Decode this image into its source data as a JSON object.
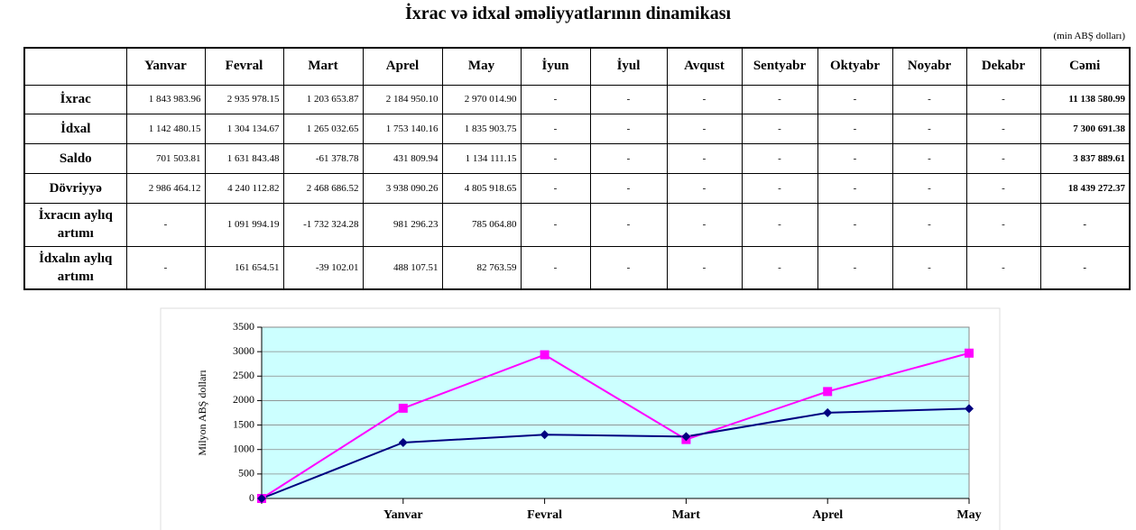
{
  "title": "İxrac və idxal əməliyyatlarının dinamikası",
  "unit_note": "(min ABŞ dolları)",
  "table": {
    "columns": [
      "Yanvar",
      "Fevral",
      "Mart",
      "Aprel",
      "May",
      "İyun",
      "İyul",
      "Avqust",
      "Sentyabr",
      "Oktyabr",
      "Noyabr",
      "Dekabr",
      "Cəmi"
    ],
    "rows": [
      {
        "label": "İxrac",
        "cells": [
          "1 843 983.96",
          "2 935 978.15",
          "1 203 653.87",
          "2 184 950.10",
          "2 970 014.90",
          "-",
          "-",
          "-",
          "-",
          "-",
          "-",
          "-",
          "11 138 580.99"
        ]
      },
      {
        "label": "İdxal",
        "cells": [
          "1 142 480.15",
          "1 304 134.67",
          "1 265 032.65",
          "1 753 140.16",
          "1 835 903.75",
          "-",
          "-",
          "-",
          "-",
          "-",
          "-",
          "-",
          "7 300 691.38"
        ]
      },
      {
        "label": "Saldo",
        "cells": [
          "701 503.81",
          "1 631 843.48",
          "-61 378.78",
          "431 809.94",
          "1 134 111.15",
          "-",
          "-",
          "-",
          "-",
          "-",
          "-",
          "-",
          "3 837 889.61"
        ]
      },
      {
        "label": "Dövriyyə",
        "cells": [
          "2 986 464.12",
          "4 240 112.82",
          "2 468 686.52",
          "3 938 090.26",
          "4 805 918.65",
          "-",
          "-",
          "-",
          "-",
          "-",
          "-",
          "-",
          "18 439 272.37"
        ]
      },
      {
        "label": "İxracın aylıq artımı",
        "cells": [
          "-",
          "1 091 994.19",
          "-1 732 324.28",
          "981 296.23",
          "785 064.80",
          "-",
          "-",
          "-",
          "-",
          "-",
          "-",
          "-",
          "-"
        ]
      },
      {
        "label": "İdxalın aylıq artımı",
        "cells": [
          "-",
          "161 654.51",
          "-39 102.01",
          "488 107.51",
          "82 763.59",
          "-",
          "-",
          "-",
          "-",
          "-",
          "-",
          "-",
          "-"
        ]
      }
    ]
  },
  "chart_data": {
    "type": "line",
    "y_label": "Milyon ABŞ dolları",
    "categories": [
      null,
      "Yanvar",
      "Fevral",
      "Mart",
      "Aprel",
      "May"
    ],
    "series": [
      {
        "color": "#ff00ff",
        "marker": "square",
        "values": [
          0,
          1844,
          2936,
          1204,
          2185,
          2970
        ]
      },
      {
        "color": "#000080",
        "marker": "diamond",
        "values": [
          0,
          1142,
          1304,
          1265,
          1753,
          1836
        ]
      }
    ],
    "ylim": [
      0,
      3500
    ],
    "yticks": [
      0,
      500,
      1000,
      1500,
      2000,
      2500,
      3000,
      3500
    ],
    "grid": true,
    "background": "#ccffff"
  }
}
